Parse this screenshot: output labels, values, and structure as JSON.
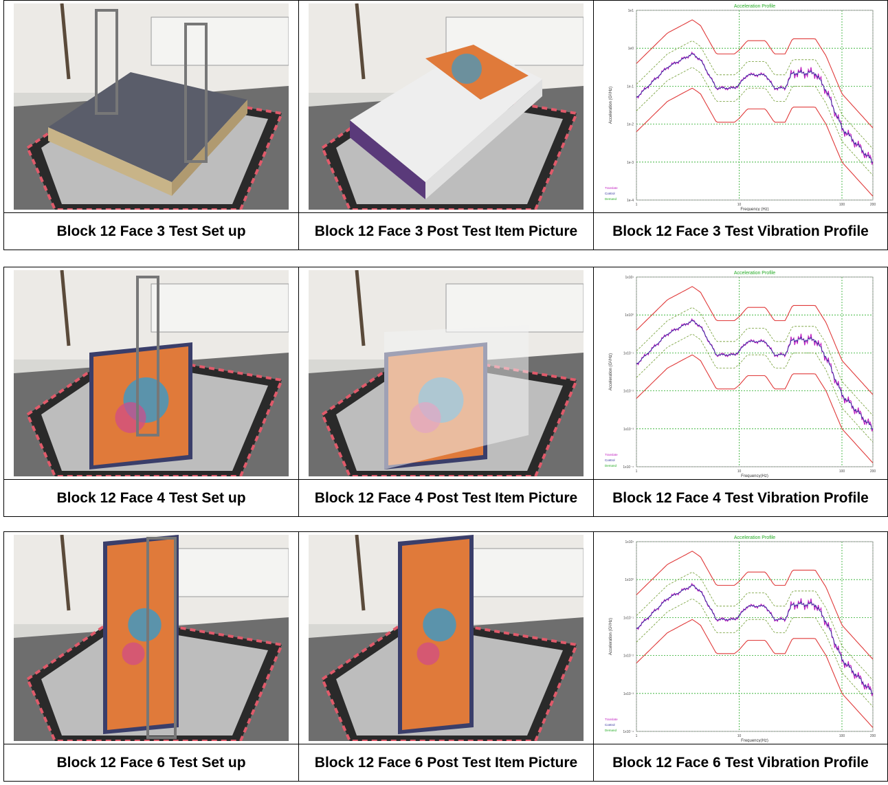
{
  "sections": [
    {
      "captions": [
        "Block 12 Face 3 Test Set up",
        "Block 12 Face 3 Post Test Item Picture",
        "Block 12 Face 3 Test Vibration Profile"
      ],
      "photos": [
        "box-flat",
        "box-flat-print"
      ],
      "chart": {
        "title": "Acceleration Profile",
        "xlabel": "Frequency (Hz)",
        "ylabel": "Acceleration (G²/Hz)",
        "yticks": [
          "1e1",
          "1e0",
          "1e-1",
          "1e-2",
          "1e-3",
          "1e-4"
        ],
        "xticks": [
          "1",
          "10",
          "100",
          "200"
        ],
        "legend": [
          "Translate",
          "Control",
          "Demand"
        ]
      }
    },
    {
      "captions": [
        "Block 12 Face 4 Test Set up",
        "Block 12 Face 4 Post Test Item Picture",
        "Block 12 Face 4 Test Vibration Profile"
      ],
      "photos": [
        "box-side",
        "box-side"
      ],
      "chart": {
        "title": "Acceleration Profile",
        "xlabel": "Frequency(Hz)",
        "ylabel": "Acceleration (G²/Hz)",
        "yticks": [
          "1x10¹",
          "1x10⁰",
          "1x10⁻¹",
          "1x10⁻²",
          "1x10⁻³",
          "1x10⁻⁴"
        ],
        "xticks": [
          "1",
          "10",
          "100",
          "200"
        ],
        "legend": [
          "Translate",
          "Control",
          "Demand"
        ]
      }
    },
    {
      "captions": [
        "Block 12 Face 6 Test Set up",
        "Block 12 Face 6 Post Test Item Picture",
        "Block 12 Face 6 Test Vibration Profile"
      ],
      "photos": [
        "box-upright",
        "box-upright"
      ],
      "chart": {
        "title": "Acceleration Profile",
        "xlabel": "Frequency(Hz)",
        "ylabel": "Acceleration (G²/Hz)",
        "yticks": [
          "1x10¹",
          "1x10⁰",
          "1x10⁻¹",
          "1x10⁻²",
          "1x10⁻³",
          "1x10⁻⁴"
        ],
        "xticks": [
          "1",
          "10",
          "100",
          "200"
        ],
        "legend": [
          "Translate",
          "Control",
          "Demand"
        ]
      }
    }
  ],
  "colors": {
    "abort": "#e03a3a",
    "alarm": "#6f9b2f",
    "control": "#2a2a9a",
    "response": "#c020c0",
    "grid": "#22aa22",
    "title": "#22aa22"
  }
}
